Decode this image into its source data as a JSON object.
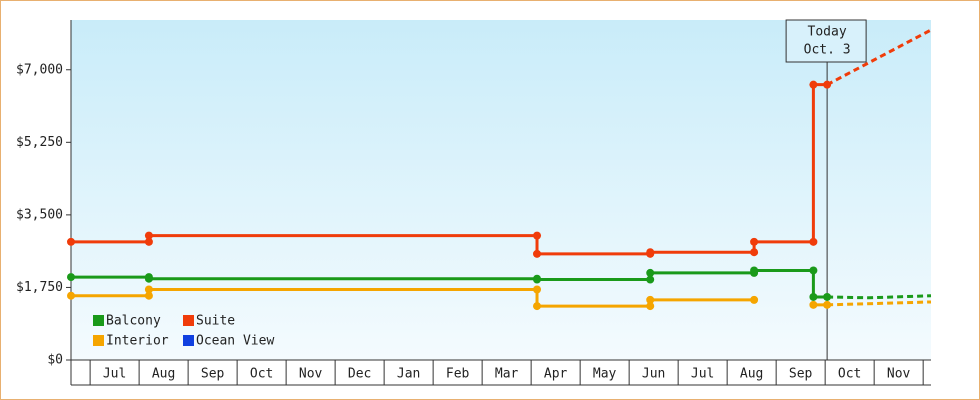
{
  "chart_data": {
    "type": "step-line",
    "xlim": [
      -0.39,
      17.16
    ],
    "ylim": [
      0,
      8200
    ],
    "xticks": [
      {
        "value": 0.5,
        "label": "Jul"
      },
      {
        "value": 1.5,
        "label": "Aug"
      },
      {
        "value": 2.5,
        "label": "Sep"
      },
      {
        "value": 3.5,
        "label": "Oct"
      },
      {
        "value": 4.5,
        "label": "Nov"
      },
      {
        "value": 5.5,
        "label": "Dec"
      },
      {
        "value": 6.5,
        "label": "Jan"
      },
      {
        "value": 7.5,
        "label": "Feb"
      },
      {
        "value": 8.5,
        "label": "Mar"
      },
      {
        "value": 9.5,
        "label": "Apr"
      },
      {
        "value": 10.5,
        "label": "May"
      },
      {
        "value": 11.5,
        "label": "Jun"
      },
      {
        "value": 12.5,
        "label": "Jul"
      },
      {
        "value": 13.5,
        "label": "Aug"
      },
      {
        "value": 14.5,
        "label": "Sep"
      },
      {
        "value": 15.5,
        "label": "Oct"
      },
      {
        "value": 16.5,
        "label": "Nov"
      }
    ],
    "yticks": [
      {
        "value": 0,
        "label": "$0"
      },
      {
        "value": 1750,
        "label": "$1,750"
      },
      {
        "value": 3500,
        "label": "$3,500"
      },
      {
        "value": 5250,
        "label": "$5,250"
      },
      {
        "value": 7000,
        "label": "$7,000"
      }
    ],
    "series": [
      {
        "name": "Balcony",
        "color": "#1a9a1a",
        "x": [
          -0.39,
          1.2,
          1.2,
          9.12,
          9.12,
          11.43,
          11.43,
          13.55,
          13.55,
          14.76,
          14.76,
          15.04
        ],
        "values": [
          2000,
          2000,
          1960,
          1960,
          1940,
          1940,
          2100,
          2100,
          2160,
          2160,
          1520,
          1520
        ],
        "projection": {
          "x": [
            15.04,
            15.9,
            17.16
          ],
          "values": [
            1520,
            1500,
            1550
          ]
        }
      },
      {
        "name": "Suite",
        "color": "#f03c0a",
        "x": [
          -0.39,
          1.2,
          1.2,
          9.12,
          9.12,
          11.43,
          11.43,
          13.55,
          13.55,
          14.76,
          14.76,
          15.04
        ],
        "values": [
          2850,
          2850,
          3000,
          3000,
          2560,
          2560,
          2600,
          2600,
          2850,
          2850,
          6640,
          6640
        ],
        "projection": {
          "x": [
            15.04,
            17.16
          ],
          "values": [
            6640,
            7960
          ]
        }
      },
      {
        "name": "Interior",
        "color": "#f5a500",
        "x": [
          -0.39,
          1.2,
          1.2,
          9.12,
          9.12,
          11.43,
          11.43,
          13.55,
          13.55,
          14.76,
          15.04
        ],
        "values": [
          1550,
          1550,
          1700,
          1700,
          1300,
          1300,
          1450,
          1450,
          null,
          1330,
          1330
        ],
        "projection": {
          "x": [
            15.04,
            17.16
          ],
          "values": [
            1330,
            1400
          ]
        }
      },
      {
        "name": "Ocean View",
        "color": "#1040e0",
        "x": [],
        "values": []
      }
    ],
    "annotations": [
      {
        "x": 15.04,
        "text": [
          "Today",
          "Oct. 3"
        ]
      }
    ]
  }
}
